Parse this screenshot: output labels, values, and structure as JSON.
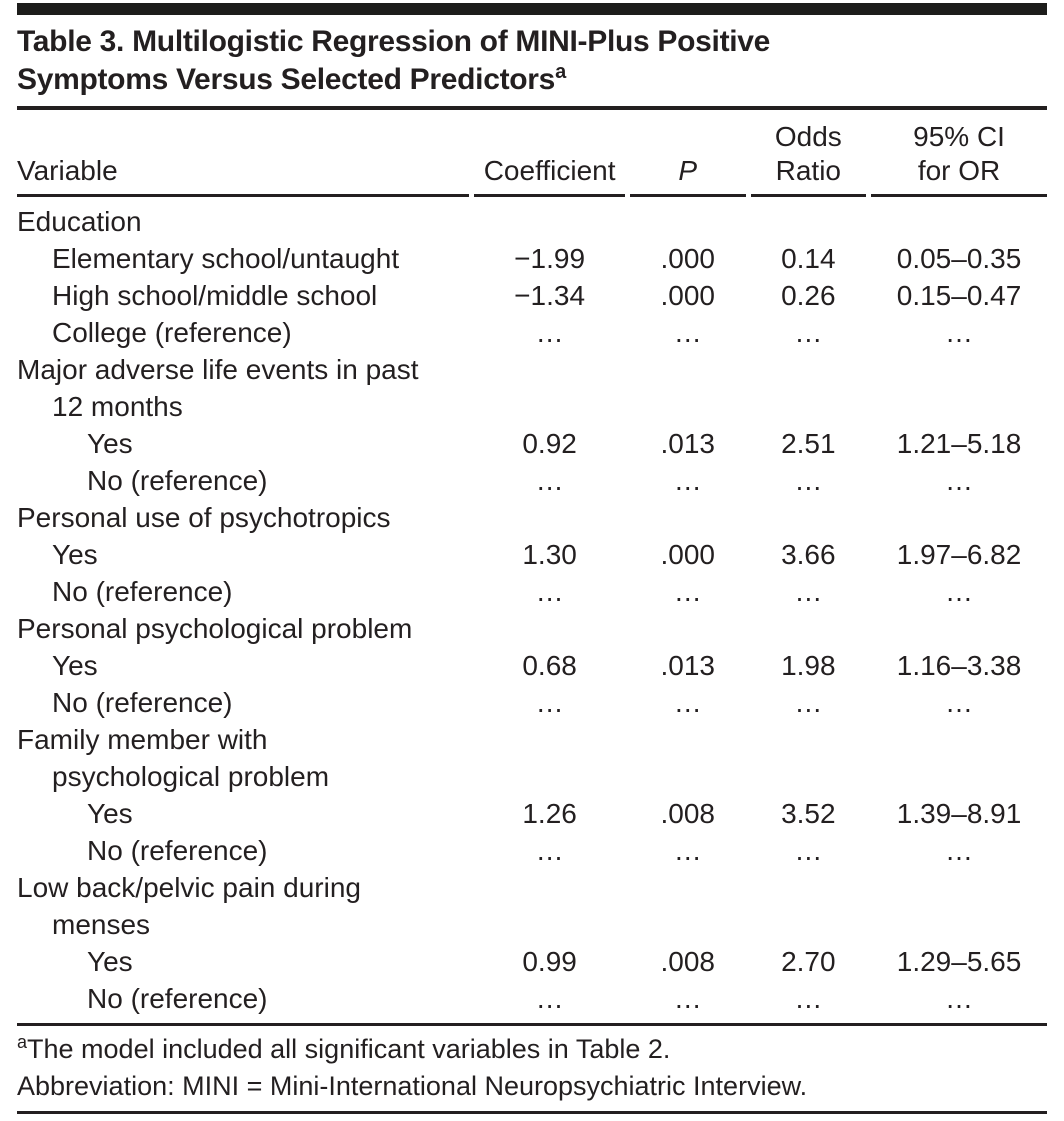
{
  "table": {
    "title": {
      "line1": "Table 3. Multilogistic Regression of MINI-Plus Positive",
      "line2": "Symptoms Versus Selected Predictors",
      "superscript": "a"
    },
    "columns": {
      "variable": "Variable",
      "coefficient": "Coefficient",
      "p": "P",
      "odds_ratio": "Odds\nRatio",
      "ci": "95% CI\nfor OR"
    },
    "rows": [
      {
        "label": "Education",
        "coefficient": "",
        "p": "",
        "odds_ratio": "",
        "ci": ""
      },
      {
        "label": "Elementary school/untaught",
        "coefficient": "−1.99",
        "p": ".000",
        "odds_ratio": "0.14",
        "ci": "0.05–0.35"
      },
      {
        "label": "High school/middle school",
        "coefficient": "−1.34",
        "p": ".000",
        "odds_ratio": "0.26",
        "ci": "0.15–0.47"
      },
      {
        "label": "College (reference)",
        "coefficient": "…",
        "p": "…",
        "odds_ratio": "…",
        "ci": "…"
      },
      {
        "label": "Major adverse life events in past",
        "coefficient": "",
        "p": "",
        "odds_ratio": "",
        "ci": ""
      },
      {
        "label": "12 months",
        "coefficient": "",
        "p": "",
        "odds_ratio": "",
        "ci": ""
      },
      {
        "label": "Yes",
        "coefficient": "0.92",
        "p": ".013",
        "odds_ratio": "2.51",
        "ci": "1.21–5.18"
      },
      {
        "label": "No (reference)",
        "coefficient": "…",
        "p": "…",
        "odds_ratio": "…",
        "ci": "…"
      },
      {
        "label": "Personal use of psychotropics",
        "coefficient": "",
        "p": "",
        "odds_ratio": "",
        "ci": ""
      },
      {
        "label": "Yes",
        "coefficient": "1.30",
        "p": ".000",
        "odds_ratio": "3.66",
        "ci": "1.97–6.82"
      },
      {
        "label": "No (reference)",
        "coefficient": "…",
        "p": "…",
        "odds_ratio": "…",
        "ci": "…"
      },
      {
        "label": "Personal psychological problem",
        "coefficient": "",
        "p": "",
        "odds_ratio": "",
        "ci": ""
      },
      {
        "label": "Yes",
        "coefficient": "0.68",
        "p": ".013",
        "odds_ratio": "1.98",
        "ci": "1.16–3.38"
      },
      {
        "label": "No (reference)",
        "coefficient": "…",
        "p": "…",
        "odds_ratio": "…",
        "ci": "…"
      },
      {
        "label": "Family member with",
        "coefficient": "",
        "p": "",
        "odds_ratio": "",
        "ci": ""
      },
      {
        "label": "psychological problem",
        "coefficient": "",
        "p": "",
        "odds_ratio": "",
        "ci": ""
      },
      {
        "label": "Yes",
        "coefficient": "1.26",
        "p": ".008",
        "odds_ratio": "3.52",
        "ci": "1.39–8.91"
      },
      {
        "label": "No (reference)",
        "coefficient": "…",
        "p": "…",
        "odds_ratio": "…",
        "ci": "…"
      },
      {
        "label": "Low back/pelvic pain during",
        "coefficient": "",
        "p": "",
        "odds_ratio": "",
        "ci": ""
      },
      {
        "label": "menses",
        "coefficient": "",
        "p": "",
        "odds_ratio": "",
        "ci": ""
      },
      {
        "label": "Yes",
        "coefficient": "0.99",
        "p": ".008",
        "odds_ratio": "2.70",
        "ci": "1.29–5.65"
      },
      {
        "label": "No (reference)",
        "coefficient": "…",
        "p": "…",
        "odds_ratio": "…",
        "ci": "…"
      }
    ],
    "footnotes": {
      "a_superscript": "a",
      "a_text": "The model included all significant variables in Table 2.",
      "abbreviation": "Abbreviation: MINI = Mini-International Neuropsychiatric Interview."
    }
  }
}
